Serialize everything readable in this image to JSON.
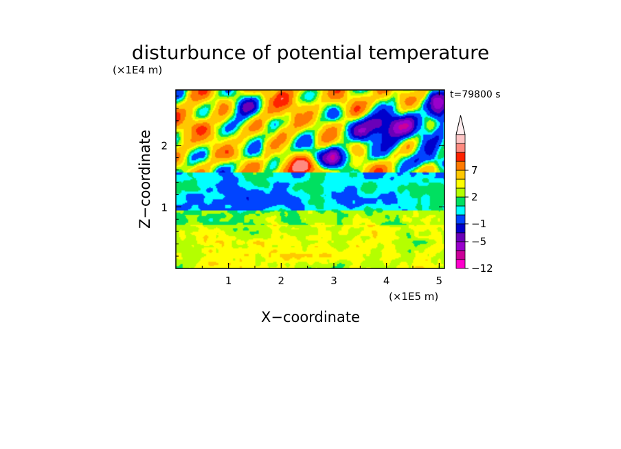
{
  "chart_data": {
    "type": "heatmap",
    "title": "disturbunce of potential temperature",
    "time_label": "t=79800 s",
    "xlabel": "X−coordinate",
    "ylabel": "Z−coordinate",
    "x_unit": "(×1E5 m)",
    "y_unit": "(×1E4 m)",
    "xlim": [
      0,
      5.1
    ],
    "ylim": [
      0,
      2.9
    ],
    "x_ticks": [
      1,
      2,
      3,
      4,
      5
    ],
    "x_tick_labels": [
      "1",
      "2",
      "3",
      "4",
      "5"
    ],
    "y_ticks": [
      1,
      2
    ],
    "y_tick_labels": [
      "1",
      "2"
    ],
    "colorbar": {
      "levels": [
        -12,
        -9,
        -7,
        -5,
        -3,
        -1,
        0,
        1,
        2,
        3,
        5,
        7,
        9,
        12
      ],
      "colors": [
        "#ff00cc",
        "#cc0099",
        "#9900cc",
        "#6a00b8",
        "#0000cc",
        "#0044ff",
        "#00ffff",
        "#00e060",
        "#b4ff00",
        "#ffff00",
        "#ffc800",
        "#ff7a00",
        "#ff2200",
        "#ff8a80",
        "#ffc4c4"
      ],
      "extend_max_color": "#ffeef0",
      "labeled_levels": [
        {
          "level": -12,
          "label": "−12"
        },
        {
          "level": -5,
          "label": "−5"
        },
        {
          "level": -1,
          "label": "−1"
        },
        {
          "level": 2,
          "label": "2"
        },
        {
          "level": 7,
          "label": "7"
        }
      ]
    }
  }
}
